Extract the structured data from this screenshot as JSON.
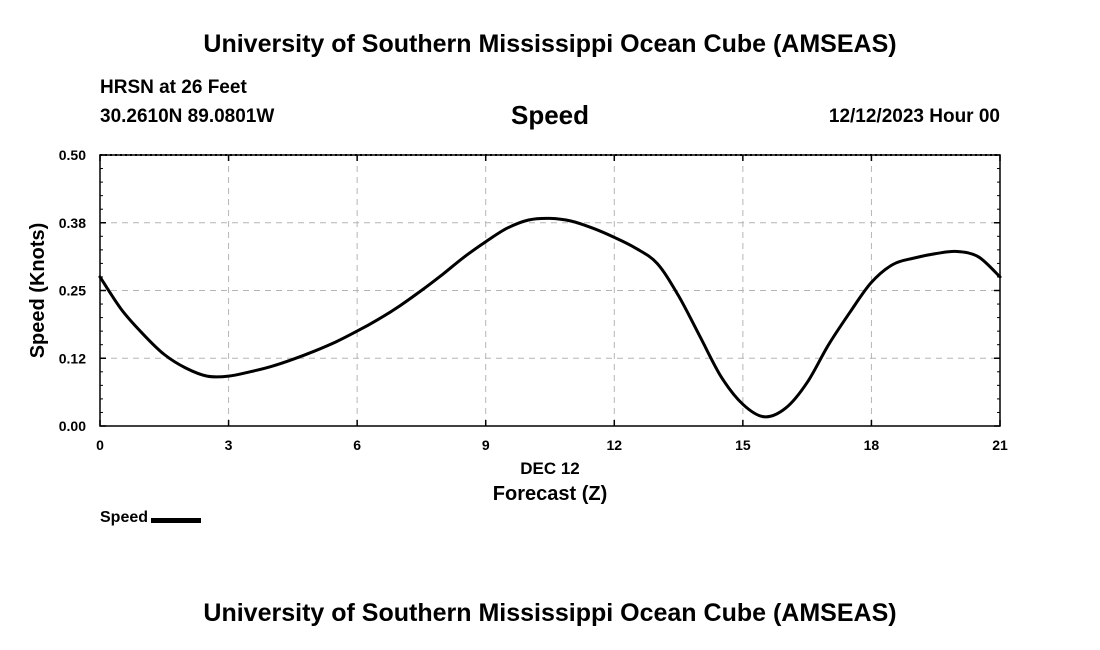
{
  "header": {
    "title": "University of Southern Mississippi Ocean Cube (AMSEAS)",
    "station": "HRSN at 26 Feet",
    "coordinates": "30.2610N  89.0801W",
    "timestamp": "12/12/2023 Hour 00"
  },
  "footer": {
    "title": "University of Southern Mississippi Ocean Cube (AMSEAS)"
  },
  "legend": {
    "label": "Speed"
  },
  "chart_data": {
    "type": "line",
    "title": "Speed",
    "xlabel": "Forecast (Z)",
    "xdate_label": "DEC 12",
    "ylabel": "Speed (Knots)",
    "xlim": [
      0,
      21
    ],
    "ylim": [
      0,
      0.5
    ],
    "xticks": [
      0,
      3,
      6,
      9,
      12,
      15,
      18,
      21
    ],
    "xtick_labels": [
      "0",
      "3",
      "6",
      "9",
      "12",
      "15",
      "18",
      "21"
    ],
    "yticks": [
      0,
      0.125,
      0.25,
      0.375,
      0.5
    ],
    "ytick_labels": [
      "0.00",
      "0.12",
      "0.25",
      "0.38",
      "0.50"
    ],
    "grid": true,
    "series": [
      {
        "name": "Speed",
        "color": "#000000",
        "x": [
          0,
          0.5,
          1,
          1.5,
          2,
          2.5,
          3,
          3.5,
          4,
          4.5,
          5,
          5.5,
          6,
          6.5,
          7,
          7.5,
          8,
          8.5,
          9,
          9.5,
          10,
          10.5,
          11,
          11.5,
          12,
          12.5,
          13,
          13.5,
          14,
          14.5,
          15,
          15.5,
          16,
          16.5,
          17,
          17.5,
          18,
          18.5,
          19,
          19.5,
          20,
          20.5,
          21
        ],
        "values": [
          0.275,
          0.215,
          0.17,
          0.132,
          0.107,
          0.092,
          0.092,
          0.1,
          0.11,
          0.123,
          0.138,
          0.155,
          0.175,
          0.197,
          0.222,
          0.25,
          0.28,
          0.312,
          0.34,
          0.365,
          0.38,
          0.383,
          0.378,
          0.365,
          0.348,
          0.328,
          0.3,
          0.24,
          0.165,
          0.09,
          0.04,
          0.017,
          0.033,
          0.08,
          0.15,
          0.21,
          0.265,
          0.298,
          0.31,
          0.318,
          0.322,
          0.312,
          0.275
        ]
      }
    ]
  }
}
